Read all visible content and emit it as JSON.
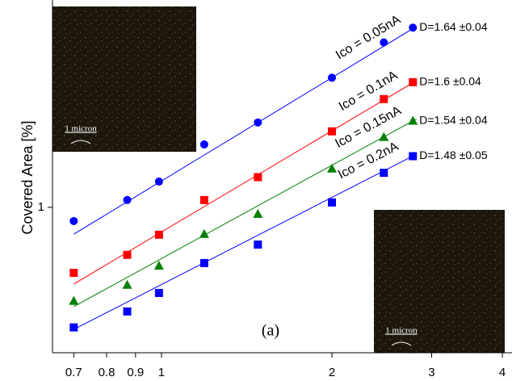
{
  "chart_data": {
    "type": "scatter",
    "y_label": "Covered Area [%]",
    "annotation": "(a)",
    "inset_label": "1 micron",
    "x_log": true,
    "y_log": true,
    "xlim": [
      0.642,
      4.16
    ],
    "ylim": [
      0.555,
      2.315
    ],
    "xticks": [
      0.7,
      0.8,
      0.9,
      1,
      2,
      3,
      4
    ],
    "yticks": [
      1
    ],
    "x": [
      0.7,
      0.87,
      0.99,
      1.19,
      1.48,
      2.0,
      2.47,
      2.78
    ],
    "series": [
      {
        "name": "Ico = 0.05nA",
        "label": "D=1.64 ±0.04",
        "color": "#0000ff",
        "marker": "circle",
        "values": [
          0.946,
          1.03,
          1.11,
          1.29,
          1.41,
          1.69,
          1.95,
          2.07
        ],
        "fit": {
          "x": [
            0.7,
            2.82
          ],
          "values": [
            0.897,
            2.08
          ]
        }
      },
      {
        "name": "Ico = 0.1nA",
        "label": "D=1.6 ±0.04",
        "color": "#ff0000",
        "marker": "square",
        "values": [
          0.767,
          0.825,
          0.895,
          1.03,
          1.13,
          1.36,
          1.55,
          1.66
        ],
        "fit": {
          "x": [
            0.7,
            2.82
          ],
          "values": [
            0.733,
            1.67
          ]
        }
      },
      {
        "name": "Ico = 0.15nA",
        "label": "D=1.54 ±0.04",
        "color": "#008000",
        "marker": "triangle",
        "values": [
          0.685,
          0.731,
          0.79,
          0.898,
          0.974,
          1.17,
          1.33,
          1.42
        ],
        "fit": {
          "x": [
            0.7,
            2.82
          ],
          "values": [
            0.669,
            1.43
          ]
        }
      },
      {
        "name": "Ico = 0.2nA",
        "label": "D=1.48 ±0.05",
        "color": "#0000ff",
        "marker": "square",
        "values": [
          0.615,
          0.656,
          0.707,
          0.798,
          0.86,
          1.02,
          1.15,
          1.23
        ],
        "fit": {
          "x": [
            0.7,
            2.82
          ],
          "values": [
            0.61,
            1.24
          ]
        }
      }
    ]
  }
}
